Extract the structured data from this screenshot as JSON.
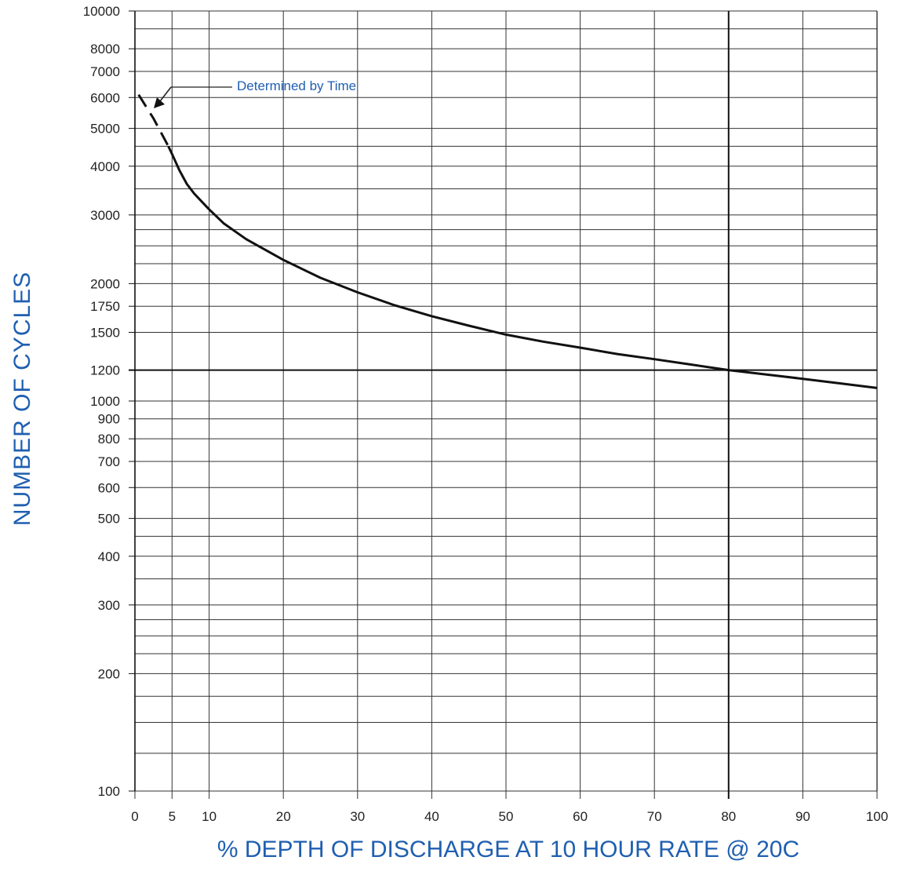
{
  "chart_data": {
    "type": "line",
    "title": "",
    "xlabel": "% DEPTH OF DISCHARGE AT 10 HOUR RATE @ 20C",
    "ylabel": "NUMBER  OF  CYCLES",
    "xlim": [
      0,
      100
    ],
    "ylim": [
      100,
      10000
    ],
    "yscale": "log",
    "grid": true,
    "x_ticks": [
      0,
      5,
      10,
      20,
      30,
      40,
      50,
      60,
      70,
      80,
      90,
      100
    ],
    "x_tick_labels": [
      "0",
      "5",
      "10",
      "20",
      "30",
      "40",
      "50",
      "60",
      "70",
      "80",
      "90",
      "100"
    ],
    "y_ticks": [
      100,
      200,
      300,
      400,
      500,
      600,
      700,
      800,
      900,
      1000,
      1200,
      1500,
      1750,
      2000,
      3000,
      4000,
      5000,
      6000,
      7000,
      8000,
      10000
    ],
    "y_tick_labels": [
      "100",
      "200",
      "300",
      "400",
      "500",
      "600",
      "700",
      "800",
      "900",
      "1000",
      "1200",
      "1500",
      "1750",
      "2000",
      "3000",
      "4000",
      "5000",
      "6000",
      "7000",
      "8000",
      "10000"
    ],
    "extra_gridlines_y": [
      125,
      150,
      175,
      225,
      250,
      275,
      350,
      450,
      2250,
      2500,
      2750,
      3500,
      4500,
      9000
    ],
    "highlight_lines": {
      "x": 80,
      "y": 1200
    },
    "series": [
      {
        "style": "solid",
        "x": [
          4.5,
          5,
          6,
          7,
          8,
          10,
          12,
          15,
          20,
          25,
          30,
          35,
          40,
          45,
          50,
          55,
          60,
          65,
          70,
          75,
          80,
          85,
          90,
          95,
          100
        ],
        "y": [
          4500,
          4300,
          3900,
          3600,
          3400,
          3100,
          2850,
          2600,
          2300,
          2070,
          1900,
          1760,
          1650,
          1560,
          1480,
          1420,
          1370,
          1320,
          1280,
          1240,
          1200,
          1170,
          1140,
          1110,
          1080
        ]
      },
      {
        "style": "dashed",
        "x": [
          0.5,
          2.5,
          4.5
        ],
        "y": [
          6100,
          5300,
          4500
        ]
      }
    ],
    "annotations": [
      {
        "text": "Determined by Time",
        "x": 2.5,
        "y": 5500
      }
    ]
  }
}
